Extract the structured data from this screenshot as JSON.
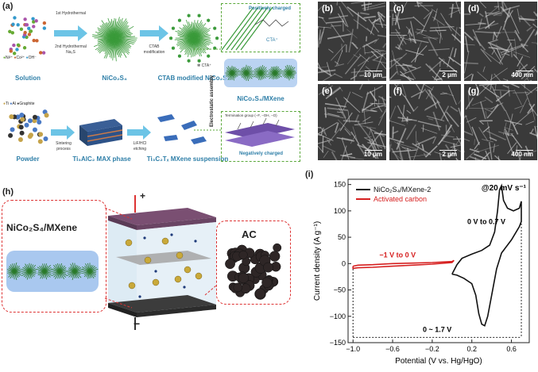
{
  "panels": {
    "a": {
      "letter": "(a)",
      "top_row": {
        "solution": "Solution",
        "nico2s4": "NiCo₂S₄",
        "ctab_nico2s4": "CTAB modified NiCo₂S₄",
        "step1_a": "1st Hydrothermal",
        "step1_b": "2nd Hydrothermal",
        "step1_c": "Na₂S",
        "step2_a": "CTAB",
        "step2_b": "modification",
        "legend_ni": "Ni²⁺",
        "legend_co": "Co²⁺",
        "legend_oh": "OH⁻",
        "legend_cta": "CTA⁺",
        "positively_charged": "Positively charged",
        "cta_inset": "CTA⁺"
      },
      "bottom_row": {
        "legend_ti": "Ti",
        "legend_al": "Al",
        "legend_graphite": "Graphite",
        "powder": "Powder",
        "max_phase": "Ti₃AlC₂ MAX phase",
        "mxene_suspension": "Ti₃C₂Tₓ MXene suspension",
        "sintering_a": "Sintering",
        "sintering_b": "process",
        "etch_a": "LiF/HCl",
        "etch_b": "etching",
        "termination": "Termination group (−F, −OH, −O)",
        "negatively_charged": "Negatively charged"
      },
      "electrostatic": "Electrostatic assembly",
      "composite": "NiCo₂S₄/MXene"
    },
    "sem": [
      {
        "letter": "(b)",
        "scale": "10 μm"
      },
      {
        "letter": "(c)",
        "scale": "2 μm"
      },
      {
        "letter": "(d)",
        "scale": "400 nm"
      },
      {
        "letter": "(e)",
        "scale": "10 μm"
      },
      {
        "letter": "(f)",
        "scale": "2 μm"
      },
      {
        "letter": "(g)",
        "scale": "400 nm"
      }
    ],
    "h": {
      "letter": "(h)",
      "left_label": "NiCo₂S₄/MXene",
      "right_label": "AC",
      "plus": "+",
      "minus": "−"
    },
    "i": {
      "letter": "(i)"
    }
  },
  "chart_data": {
    "type": "line",
    "xlabel": "Potential (V vs. Hg/HgO)",
    "ylabel": "Current density (A g⁻¹)",
    "xlim": [
      -1.05,
      0.78
    ],
    "ylim": [
      -150,
      160
    ],
    "xticks": [
      -1.0,
      -0.6,
      -0.2,
      0.2,
      0.6
    ],
    "xtick_labels": [
      "−1.0",
      "−0.6",
      "−0.2",
      "0.2",
      "0.6"
    ],
    "yticks": [
      -150,
      -100,
      -50,
      0,
      50,
      100,
      150
    ],
    "ytick_labels": [
      "−150",
      "−100",
      "−50",
      "0",
      "50",
      "100",
      "150"
    ],
    "annotation_rate": "@20 mV s⁻¹",
    "annotation_pos": "0 V to 0.7 V",
    "annotation_neg": "−1 V to 0 V",
    "annotation_range": "0 ~ 1.7 V",
    "colors": {
      "nico": "#111111",
      "ac": "#d62020"
    },
    "series": [
      {
        "name": "NiCo₂S₄/MXene-2",
        "color": "#111111",
        "points": [
          [
            0.0,
            -20
          ],
          [
            0.05,
            -2
          ],
          [
            0.1,
            10
          ],
          [
            0.2,
            18
          ],
          [
            0.3,
            25
          ],
          [
            0.38,
            35
          ],
          [
            0.43,
            60
          ],
          [
            0.46,
            100
          ],
          [
            0.48,
            140
          ],
          [
            0.5,
            148
          ],
          [
            0.52,
            120
          ],
          [
            0.56,
            105
          ],
          [
            0.62,
            100
          ],
          [
            0.68,
            105
          ],
          [
            0.7,
            118
          ],
          [
            0.7,
            80
          ],
          [
            0.68,
            70
          ],
          [
            0.6,
            45
          ],
          [
            0.5,
            20
          ],
          [
            0.45,
            -10
          ],
          [
            0.4,
            -60
          ],
          [
            0.36,
            -100
          ],
          [
            0.33,
            -118
          ],
          [
            0.3,
            -115
          ],
          [
            0.27,
            -95
          ],
          [
            0.24,
            -60
          ],
          [
            0.2,
            -38
          ],
          [
            0.12,
            -28
          ],
          [
            0.05,
            -22
          ],
          [
            0.0,
            -20
          ]
        ]
      },
      {
        "name": "Activated carbon",
        "color": "#d62020",
        "points": [
          [
            -1.0,
            -5
          ],
          [
            -0.95,
            -3
          ],
          [
            -0.8,
            -2
          ],
          [
            -0.6,
            0
          ],
          [
            -0.4,
            1
          ],
          [
            -0.2,
            2
          ],
          [
            0.0,
            4
          ],
          [
            0.02,
            6
          ],
          [
            0.0,
            2
          ],
          [
            -0.2,
            -1
          ],
          [
            -0.4,
            -3
          ],
          [
            -0.6,
            -5
          ],
          [
            -0.8,
            -7
          ],
          [
            -0.95,
            -8
          ],
          [
            -1.0,
            -9
          ],
          [
            -1.0,
            -5
          ]
        ]
      }
    ]
  }
}
